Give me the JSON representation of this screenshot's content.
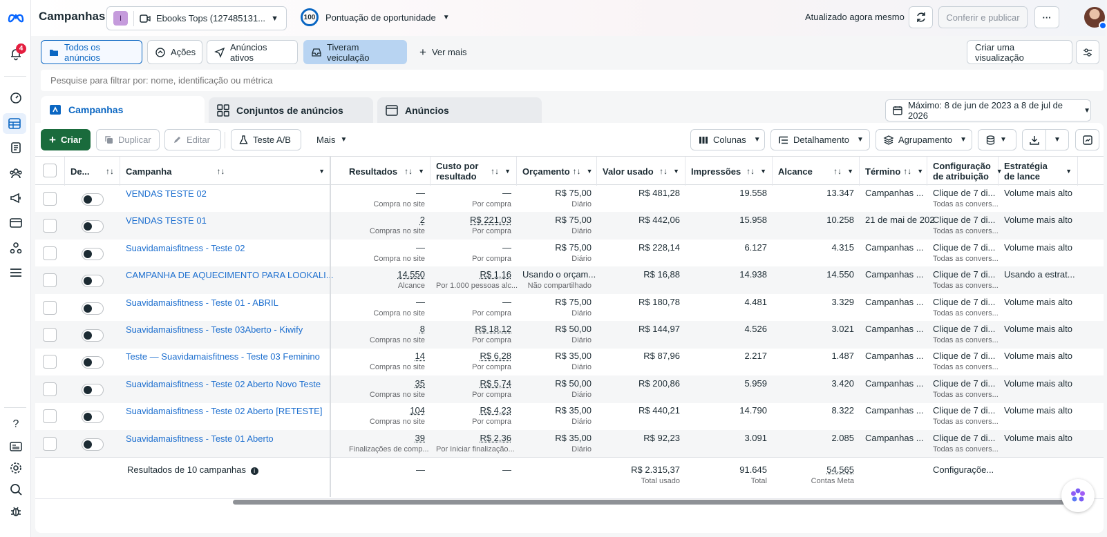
{
  "app": {
    "title": "Campanhas",
    "account": {
      "initial": "I",
      "name": "Ebooks Tops (127485131..."
    },
    "opportunity": {
      "score": "100",
      "label": "Pontuação de oportunidade"
    },
    "updated": "Atualizado agora mesmo",
    "publish_label": "Conferir e publicar",
    "more_label": "···",
    "notifications_count": "4"
  },
  "filters": {
    "chips": [
      "Todos os anúncios",
      "Ações",
      "Anúncios ativos",
      "Tiveram veiculação",
      "Ver mais"
    ],
    "create_view": "Criar uma visualização",
    "search_placeholder": "Pesquise para filtrar por: nome, identificação ou métrica"
  },
  "tabs": [
    "Campanhas",
    "Conjuntos de anúncios",
    "Anúncios"
  ],
  "date_range": "Máximo: 8 de jun de 2023 a 8 de jul de 2026",
  "toolbar": {
    "create": "Criar",
    "duplicate": "Duplicar",
    "edit": "Editar",
    "ab_test": "Teste A/B",
    "more": "Mais",
    "columns": "Colunas",
    "breakdown": "Detalhamento",
    "grouping": "Agrupamento"
  },
  "columns": {
    "delivery": "De...",
    "campaign": "Campanha",
    "results": "Resultados",
    "cost_per_result": "Custo por resultado",
    "budget": "Orçamento",
    "amount_spent": "Valor usado",
    "impressions": "Impressões",
    "reach": "Alcance",
    "end": "Término",
    "attribution": "Configuração de atribuição",
    "bid_strategy": "Estratégia de lance"
  },
  "rows": [
    {
      "name": "VENDAS TESTE 02",
      "results": "—",
      "results_sub": "Compra no site",
      "cpr": "—",
      "cpr_sub": "Por compra",
      "budget": "R$ 75,00",
      "budget_sub": "Diário",
      "spent": "R$ 481,28",
      "impr": "19.558",
      "reach": "13.347",
      "end": "Campanhas ...",
      "attr": "Clique de 7 di...",
      "attr_sub": "Todas as convers...",
      "bid": "Volume mais alto"
    },
    {
      "name": "VENDAS TESTE 01",
      "results": "2",
      "results_sub": "Compras no site",
      "cpr": "R$ 221,03",
      "cpr_sub": "Por compra",
      "budget": "R$ 75,00",
      "budget_sub": "Diário",
      "spent": "R$ 442,06",
      "impr": "15.958",
      "reach": "10.258",
      "end": "21 de mai de 202",
      "attr": "Clique de 7 di...",
      "attr_sub": "Todas as convers...",
      "bid": "Volume mais alto"
    },
    {
      "name": "Suavidamaisfitness - Teste 02",
      "results": "—",
      "results_sub": "Compra no site",
      "cpr": "—",
      "cpr_sub": "Por compra",
      "budget": "R$ 75,00",
      "budget_sub": "Diário",
      "spent": "R$ 228,14",
      "impr": "6.127",
      "reach": "4.315",
      "end": "Campanhas ...",
      "attr": "Clique de 7 di...",
      "attr_sub": "Todas as convers...",
      "bid": "Volume mais alto"
    },
    {
      "name": "CAMPANHA DE AQUECIMENTO PARA LOOKALI...",
      "results": "14.550",
      "results_sub": "Alcance",
      "cpr": "R$ 1,16",
      "cpr_sub": "Por 1.000 pessoas alc...",
      "budget": "Usando o orçam...",
      "budget_sub": "Não compartilhado",
      "spent": "R$ 16,88",
      "impr": "14.938",
      "reach": "14.550",
      "end": "Campanhas ...",
      "attr": "Clique de 7 di...",
      "attr_sub": "Todas as convers...",
      "bid": "Usando a estrat..."
    },
    {
      "name": "Suavidamaisfitness - Teste 01 - ABRIL",
      "results": "—",
      "results_sub": "Compra no site",
      "cpr": "—",
      "cpr_sub": "Por compra",
      "budget": "R$ 75,00",
      "budget_sub": "Diário",
      "spent": "R$ 180,78",
      "impr": "4.481",
      "reach": "3.329",
      "end": "Campanhas ...",
      "attr": "Clique de 7 di...",
      "attr_sub": "Todas as convers...",
      "bid": "Volume mais alto"
    },
    {
      "name": "Suavidamaisfitness - Teste 03Aberto - Kiwify",
      "results": "8",
      "results_sub": "Compras no site",
      "cpr": "R$ 18,12",
      "cpr_sub": "Por compra",
      "budget": "R$ 50,00",
      "budget_sub": "Diário",
      "spent": "R$ 144,97",
      "impr": "4.526",
      "reach": "3.021",
      "end": "Campanhas ...",
      "attr": "Clique de 7 di...",
      "attr_sub": "Todas as convers...",
      "bid": "Volume mais alto"
    },
    {
      "name": "Teste — Suavidamaisfitness - Teste 03 Feminino",
      "results": "14",
      "results_sub": "Compras no site",
      "cpr": "R$ 6,28",
      "cpr_sub": "Por compra",
      "budget": "R$ 35,00",
      "budget_sub": "Diário",
      "spent": "R$ 87,96",
      "impr": "2.217",
      "reach": "1.487",
      "end": "Campanhas ...",
      "attr": "Clique de 7 di...",
      "attr_sub": "Todas as convers...",
      "bid": "Volume mais alto"
    },
    {
      "name": "Suavidamaisfitness - Teste 02 Aberto Novo Teste",
      "results": "35",
      "results_sub": "Compras no site",
      "cpr": "R$ 5,74",
      "cpr_sub": "Por compra",
      "budget": "R$ 50,00",
      "budget_sub": "Diário",
      "spent": "R$ 200,86",
      "impr": "5.959",
      "reach": "3.420",
      "end": "Campanhas ...",
      "attr": "Clique de 7 di...",
      "attr_sub": "Todas as convers...",
      "bid": "Volume mais alto"
    },
    {
      "name": "Suavidamaisfitness - Teste 02 Aberto [RETESTE]",
      "results": "104",
      "results_sub": "Compras no site",
      "cpr": "R$ 4,23",
      "cpr_sub": "Por compra",
      "budget": "R$ 35,00",
      "budget_sub": "Diário",
      "spent": "R$ 440,21",
      "impr": "14.790",
      "reach": "8.322",
      "end": "Campanhas ...",
      "attr": "Clique de 7 di...",
      "attr_sub": "Todas as convers...",
      "bid": "Volume mais alto"
    },
    {
      "name": "Suavidamaisfitness - Teste 01 Aberto",
      "results": "39",
      "results_sub": "Finalizações de comp...",
      "cpr": "R$ 2,36",
      "cpr_sub": "Por Iniciar finalização...",
      "budget": "R$ 35,00",
      "budget_sub": "Diário",
      "spent": "R$ 92,23",
      "impr": "3.091",
      "reach": "2.085",
      "end": "Campanhas ...",
      "attr": "Clique de 7 di...",
      "attr_sub": "Todas as convers...",
      "bid": "Volume mais alto"
    }
  ],
  "totals": {
    "label": "Resultados de 10 campanhas",
    "results": "—",
    "cpr": "—",
    "spent": "R$ 2.315,37",
    "spent_sub": "Total usado",
    "impr": "91.645",
    "impr_sub": "Total",
    "reach": "54.565",
    "reach_sub": "Contas Meta",
    "attr": "Configuraçõe..."
  },
  "colors": {
    "accent": "#0a66c2",
    "create": "#1a6b3c",
    "link": "#1d6fcf"
  }
}
